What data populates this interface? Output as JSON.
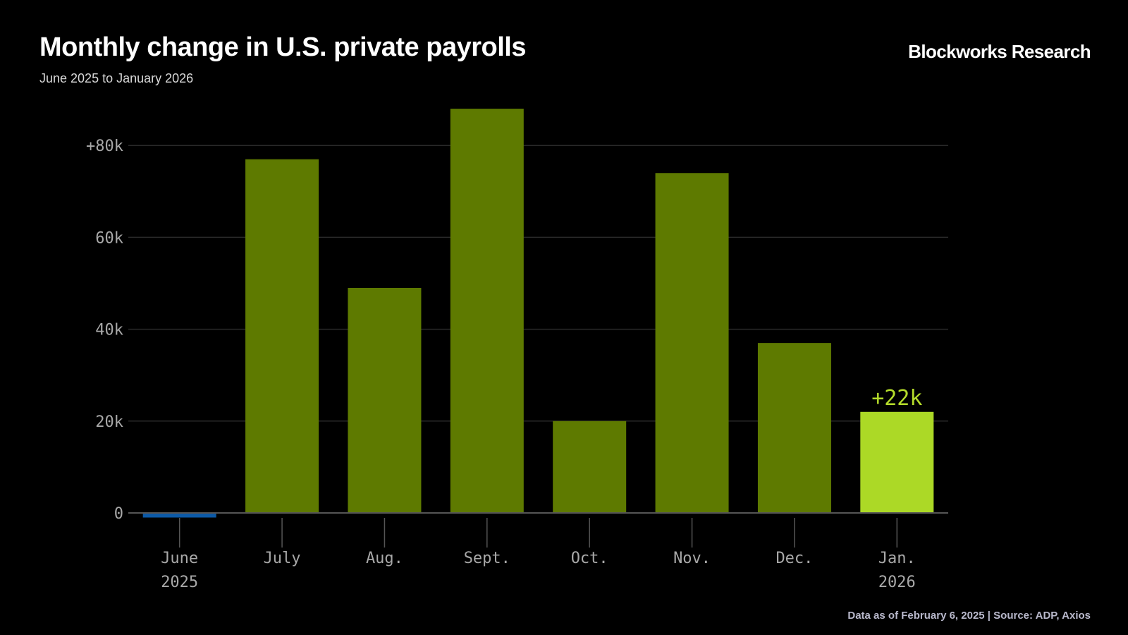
{
  "header": {
    "title": "Monthly change in U.S. private payrolls",
    "subtitle": "June 2025 to January 2026",
    "brand": "Blockworks Research"
  },
  "footer": {
    "source": "Data as of February 6, 2025 | Source:  ADP, Axios"
  },
  "colors": {
    "bar": "#5e7a00",
    "highlight": "#acd926",
    "negative": "#0d5aa7",
    "label": "#b5dc2b",
    "grid": "#2a2a2a",
    "axis": "#555555"
  },
  "chart_data": {
    "type": "bar",
    "categories": [
      "June",
      "July",
      "Aug.",
      "Sept.",
      "Oct.",
      "Nov.",
      "Dec.",
      "Jan."
    ],
    "category_sublabels": [
      "2025",
      "",
      "",
      "",
      "",
      "",
      "",
      "2026"
    ],
    "values": [
      -1,
      77,
      49,
      88,
      20,
      74,
      37,
      22
    ],
    "value_unit": "thousands",
    "highlight_index": 7,
    "data_labels": [
      {
        "index": 7,
        "text": "+22k"
      }
    ],
    "yticks": [
      {
        "value": 0,
        "label": "0"
      },
      {
        "value": 20,
        "label": "20k"
      },
      {
        "value": 40,
        "label": "40k"
      },
      {
        "value": 60,
        "label": "60k"
      },
      {
        "value": 80,
        "label": "+80k"
      }
    ],
    "ylim": [
      0,
      80
    ],
    "grid": true,
    "xlabel": "",
    "ylabel": "",
    "legend": "none"
  }
}
